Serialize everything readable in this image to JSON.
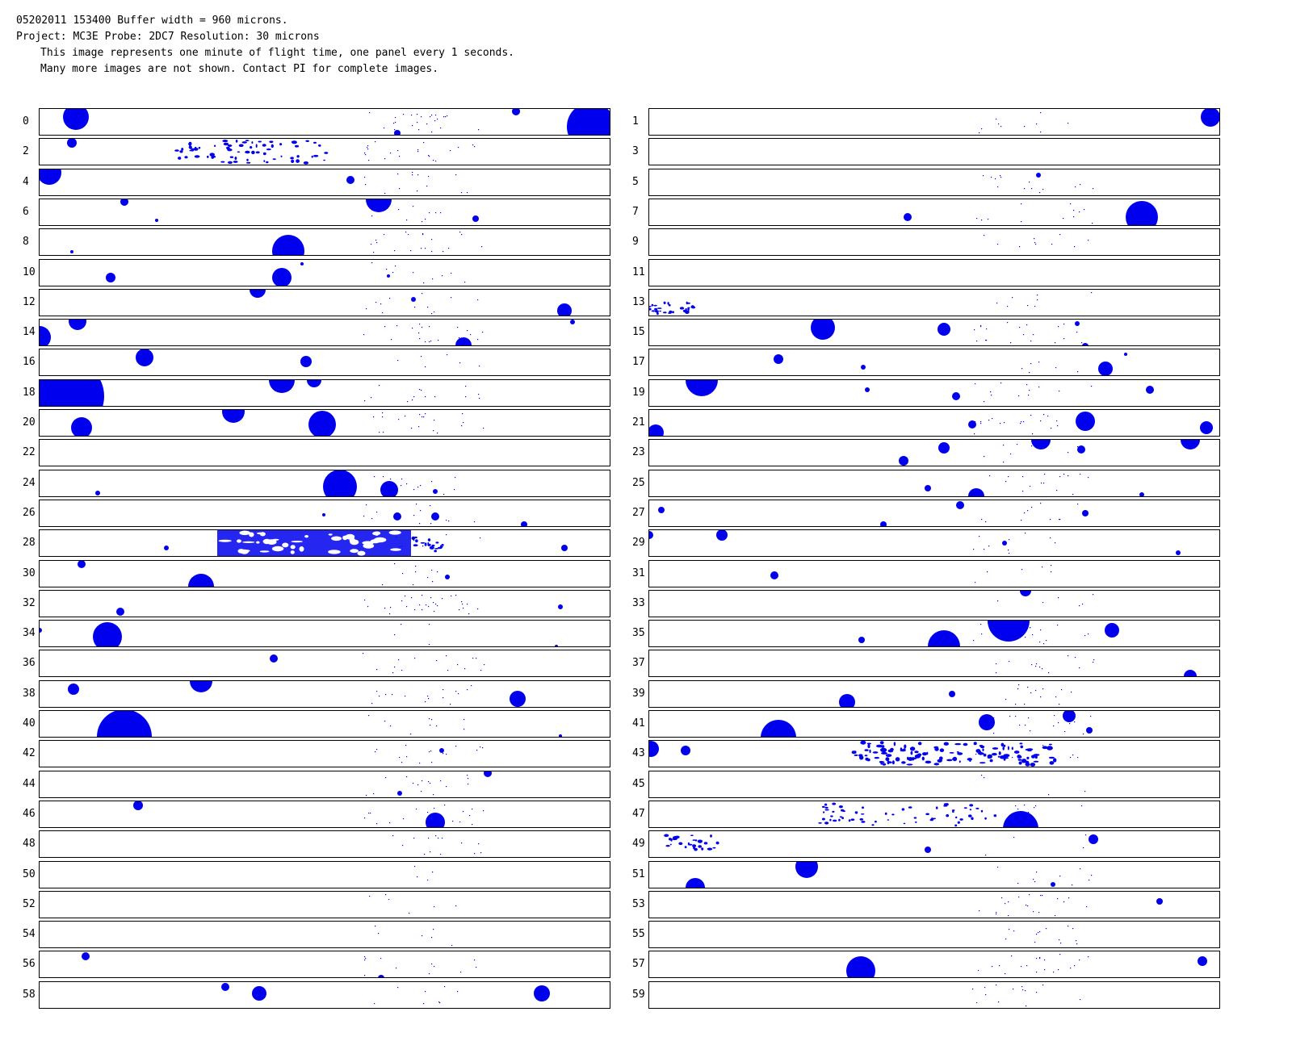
{
  "header": {
    "line1": "05202011 153400  Buffer width = 960 microns.",
    "line2": "Project: MC3E  Probe: 2DC7   Resolution: 30 microns",
    "line3": "This image represents one minute of flight time, one panel every 1 seconds.",
    "line4": "Many more images are not shown.  Contact PI for complete images."
  },
  "particle_color": "#0000ee",
  "panels": [
    {
      "label": "0",
      "particles": [
        [
          45,
          10,
          16
        ],
        [
          443,
          30,
          4
        ],
        [
          590,
          3,
          5
        ],
        [
          683,
          22,
          30
        ]
      ],
      "dots": 26,
      "swarm": 0
    },
    {
      "label": "1",
      "particles": [
        [
          695,
          10,
          12
        ]
      ],
      "dots": 10,
      "swarm": 0
    },
    {
      "label": "2",
      "particles": [
        [
          40,
          5,
          6
        ]
      ],
      "dots": 22,
      "swarm": 1
    },
    {
      "label": "3",
      "particles": [],
      "dots": 0,
      "swarm": 0
    },
    {
      "label": "4",
      "particles": [
        [
          12,
          4,
          15
        ],
        [
          385,
          13,
          5
        ]
      ],
      "dots": 14,
      "swarm": 0
    },
    {
      "label": "5",
      "particles": [
        [
          482,
          7,
          3
        ]
      ],
      "dots": 14,
      "swarm": 0
    },
    {
      "label": "6",
      "particles": [
        [
          105,
          3,
          5
        ],
        [
          420,
          0,
          16
        ],
        [
          540,
          24,
          4
        ],
        [
          145,
          26,
          2
        ]
      ],
      "dots": 10,
      "swarm": 0
    },
    {
      "label": "7",
      "particles": [
        [
          320,
          22,
          5
        ],
        [
          610,
          22,
          20
        ]
      ],
      "dots": 12,
      "swarm": 0
    },
    {
      "label": "8",
      "particles": [
        [
          308,
          27,
          20
        ],
        [
          40,
          28,
          2
        ]
      ],
      "dots": 20,
      "swarm": 0
    },
    {
      "label": "9",
      "particles": [],
      "dots": 10,
      "swarm": 0
    },
    {
      "label": "10",
      "particles": [
        [
          88,
          22,
          6
        ],
        [
          300,
          22,
          12
        ],
        [
          432,
          20,
          2
        ],
        [
          325,
          5,
          2
        ]
      ],
      "dots": 10,
      "swarm": 0
    },
    {
      "label": "11",
      "particles": [],
      "dots": 0,
      "swarm": 0
    },
    {
      "label": "12",
      "particles": [
        [
          270,
          0,
          10
        ],
        [
          463,
          12,
          3
        ],
        [
          650,
          26,
          9
        ]
      ],
      "dots": 12,
      "swarm": 0
    },
    {
      "label": "13",
      "particles": [],
      "dots": 8,
      "swarm": 2
    },
    {
      "label": "14",
      "particles": [
        [
          0,
          22,
          14
        ],
        [
          47,
          2,
          11
        ],
        [
          525,
          32,
          10
        ],
        [
          660,
          3,
          3
        ]
      ],
      "dots": 20,
      "swarm": 0
    },
    {
      "label": "15",
      "particles": [
        [
          215,
          10,
          15
        ],
        [
          365,
          12,
          8
        ],
        [
          540,
          33,
          4
        ],
        [
          530,
          5,
          3
        ]
      ],
      "dots": 20,
      "swarm": 0
    },
    {
      "label": "16",
      "particles": [
        [
          130,
          10,
          11
        ],
        [
          330,
          15,
          7
        ]
      ],
      "dots": 6,
      "swarm": 0
    },
    {
      "label": "17",
      "particles": [
        [
          160,
          12,
          6
        ],
        [
          265,
          22,
          3
        ],
        [
          565,
          24,
          9
        ],
        [
          590,
          6,
          2
        ]
      ],
      "dots": 6,
      "swarm": 0
    },
    {
      "label": "18",
      "particles": [
        [
          35,
          20,
          45
        ],
        [
          300,
          0,
          16
        ],
        [
          340,
          0,
          9
        ]
      ],
      "dots": 14,
      "swarm": 0
    },
    {
      "label": "19",
      "particles": [
        [
          65,
          0,
          20
        ],
        [
          270,
          12,
          3
        ],
        [
          380,
          20,
          5
        ],
        [
          620,
          12,
          5
        ]
      ],
      "dots": 12,
      "swarm": 0
    },
    {
      "label": "20",
      "particles": [
        [
          52,
          22,
          13
        ],
        [
          240,
          2,
          14
        ],
        [
          350,
          18,
          17
        ]
      ],
      "dots": 20,
      "swarm": 0
    },
    {
      "label": "21",
      "particles": [
        [
          8,
          28,
          10
        ],
        [
          400,
          18,
          5
        ],
        [
          540,
          14,
          12
        ],
        [
          690,
          22,
          8
        ]
      ],
      "dots": 20,
      "swarm": 0
    },
    {
      "label": "22",
      "particles": [],
      "dots": 0,
      "swarm": 0
    },
    {
      "label": "23",
      "particles": [
        [
          365,
          10,
          7
        ],
        [
          315,
          26,
          6
        ],
        [
          485,
          0,
          12
        ],
        [
          535,
          12,
          5
        ],
        [
          670,
          0,
          12
        ]
      ],
      "dots": 8,
      "swarm": 0
    },
    {
      "label": "24",
      "particles": [
        [
          372,
          20,
          21
        ],
        [
          433,
          24,
          11
        ],
        [
          72,
          28,
          3
        ],
        [
          490,
          26,
          3
        ]
      ],
      "dots": 16,
      "swarm": 0
    },
    {
      "label": "25",
      "particles": [
        [
          345,
          22,
          4
        ],
        [
          405,
          32,
          10
        ],
        [
          610,
          30,
          3
        ]
      ],
      "dots": 16,
      "swarm": 0
    },
    {
      "label": "26",
      "particles": [
        [
          443,
          20,
          5
        ],
        [
          490,
          20,
          5
        ],
        [
          600,
          30,
          4
        ],
        [
          352,
          18,
          2
        ]
      ],
      "dots": 14,
      "swarm": 0
    },
    {
      "label": "27",
      "particles": [
        [
          15,
          12,
          4
        ],
        [
          385,
          6,
          5
        ],
        [
          290,
          30,
          4
        ],
        [
          540,
          16,
          4
        ]
      ],
      "dots": 12,
      "swarm": 0
    },
    {
      "label": "28",
      "particles": [
        [
          157,
          22,
          3
        ],
        [
          650,
          22,
          4
        ]
      ],
      "dots": 10,
      "swarm": 3
    },
    {
      "label": "29",
      "particles": [
        [
          90,
          6,
          7
        ],
        [
          0,
          6,
          5
        ],
        [
          440,
          16,
          3
        ],
        [
          655,
          28,
          3
        ]
      ],
      "dots": 10,
      "swarm": 0
    },
    {
      "label": "30",
      "particles": [
        [
          52,
          4,
          5
        ],
        [
          200,
          32,
          16
        ],
        [
          505,
          20,
          3
        ]
      ],
      "dots": 10,
      "swarm": 0
    },
    {
      "label": "31",
      "particles": [
        [
          155,
          18,
          5
        ]
      ],
      "dots": 6,
      "swarm": 0
    },
    {
      "label": "32",
      "particles": [
        [
          100,
          26,
          5
        ],
        [
          645,
          20,
          3
        ]
      ],
      "dots": 30,
      "swarm": 0
    },
    {
      "label": "33",
      "particles": [
        [
          466,
          0,
          7
        ]
      ],
      "dots": 6,
      "swarm": 0
    },
    {
      "label": "34",
      "particles": [
        [
          84,
          20,
          18
        ],
        [
          0,
          12,
          3
        ],
        [
          640,
          32,
          2
        ]
      ],
      "dots": 4,
      "swarm": 0
    },
    {
      "label": "35",
      "particles": [
        [
          445,
          0,
          26
        ],
        [
          573,
          12,
          9
        ],
        [
          263,
          24,
          4
        ],
        [
          365,
          32,
          20
        ]
      ],
      "dots": 14,
      "swarm": 0
    },
    {
      "label": "36",
      "particles": [
        [
          290,
          10,
          5
        ]
      ],
      "dots": 16,
      "swarm": 0
    },
    {
      "label": "37",
      "particles": [
        [
          670,
          32,
          8
        ]
      ],
      "dots": 14,
      "swarm": 0
    },
    {
      "label": "38",
      "particles": [
        [
          42,
          10,
          7
        ],
        [
          200,
          0,
          14
        ],
        [
          592,
          22,
          10
        ]
      ],
      "dots": 16,
      "swarm": 0
    },
    {
      "label": "39",
      "particles": [
        [
          245,
          26,
          10
        ],
        [
          375,
          16,
          4
        ]
      ],
      "dots": 14,
      "swarm": 0
    },
    {
      "label": "40",
      "particles": [
        [
          105,
          32,
          34
        ],
        [
          645,
          31,
          2
        ]
      ],
      "dots": 10,
      "swarm": 0
    },
    {
      "label": "41",
      "particles": [
        [
          160,
          33,
          22
        ],
        [
          418,
          14,
          10
        ],
        [
          520,
          6,
          8
        ],
        [
          545,
          24,
          4
        ]
      ],
      "dots": 16,
      "swarm": 0
    },
    {
      "label": "42",
      "particles": [
        [
          498,
          12,
          3
        ]
      ],
      "dots": 16,
      "swarm": 0
    },
    {
      "label": "43",
      "particles": [
        [
          2,
          10,
          10
        ],
        [
          45,
          12,
          6
        ]
      ],
      "dots": 6,
      "swarm": 4
    },
    {
      "label": "44",
      "particles": [
        [
          555,
          2,
          5
        ],
        [
          446,
          27,
          3
        ]
      ],
      "dots": 16,
      "swarm": 0
    },
    {
      "label": "45",
      "particles": [],
      "dots": 4,
      "swarm": 0
    },
    {
      "label": "46",
      "particles": [
        [
          122,
          5,
          6
        ],
        [
          490,
          26,
          12
        ]
      ],
      "dots": 20,
      "swarm": 0
    },
    {
      "label": "47",
      "particles": [
        [
          460,
          34,
          22
        ]
      ],
      "dots": 10,
      "swarm": 5
    },
    {
      "label": "48",
      "particles": [],
      "dots": 14,
      "swarm": 0
    },
    {
      "label": "49",
      "particles": [
        [
          345,
          23,
          4
        ],
        [
          550,
          10,
          6
        ]
      ],
      "dots": 4,
      "swarm": 6
    },
    {
      "label": "50",
      "particles": [],
      "dots": 4,
      "swarm": 0
    },
    {
      "label": "51",
      "particles": [
        [
          195,
          6,
          14
        ],
        [
          57,
          32,
          12
        ],
        [
          500,
          28,
          3
        ]
      ],
      "dots": 10,
      "swarm": 0
    },
    {
      "label": "52",
      "particles": [],
      "dots": 6,
      "swarm": 0
    },
    {
      "label": "53",
      "particles": [
        [
          632,
          12,
          4
        ]
      ],
      "dots": 20,
      "swarm": 0
    },
    {
      "label": "54",
      "particles": [],
      "dots": 6,
      "swarm": 0
    },
    {
      "label": "55",
      "particles": [],
      "dots": 14,
      "swarm": 0
    },
    {
      "label": "56",
      "particles": [
        [
          57,
          6,
          5
        ],
        [
          423,
          33,
          4
        ]
      ],
      "dots": 12,
      "swarm": 0
    },
    {
      "label": "57",
      "particles": [
        [
          262,
          24,
          18
        ],
        [
          685,
          12,
          6
        ]
      ],
      "dots": 20,
      "swarm": 0
    },
    {
      "label": "58",
      "particles": [
        [
          230,
          6,
          5
        ],
        [
          272,
          14,
          9
        ],
        [
          622,
          14,
          10
        ]
      ],
      "dots": 8,
      "swarm": 0
    },
    {
      "label": "59",
      "particles": [],
      "dots": 14,
      "swarm": 0
    }
  ]
}
